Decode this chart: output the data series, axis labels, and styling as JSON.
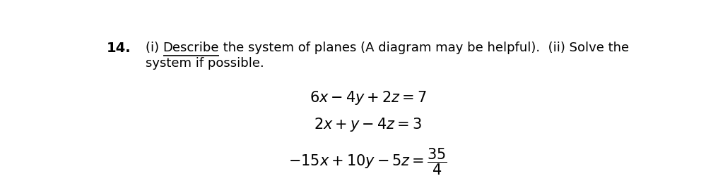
{
  "background_color": "#ffffff",
  "fig_width": 10.16,
  "fig_height": 2.77,
  "dpi": 100,
  "number_text": "14.",
  "number_fontsize": 14,
  "number_fontweight": "bold",
  "header_fontsize": 13,
  "header_line1_normal1": "(i) ",
  "header_line1_underline": "Describe",
  "header_line1_normal2": " the system of planes (A diagram may be helpful).  (ii) Solve the",
  "header_line2": "system if possible.",
  "eq_fontsize": 15,
  "text_color": "#000000",
  "font_family": "DejaVu Sans"
}
